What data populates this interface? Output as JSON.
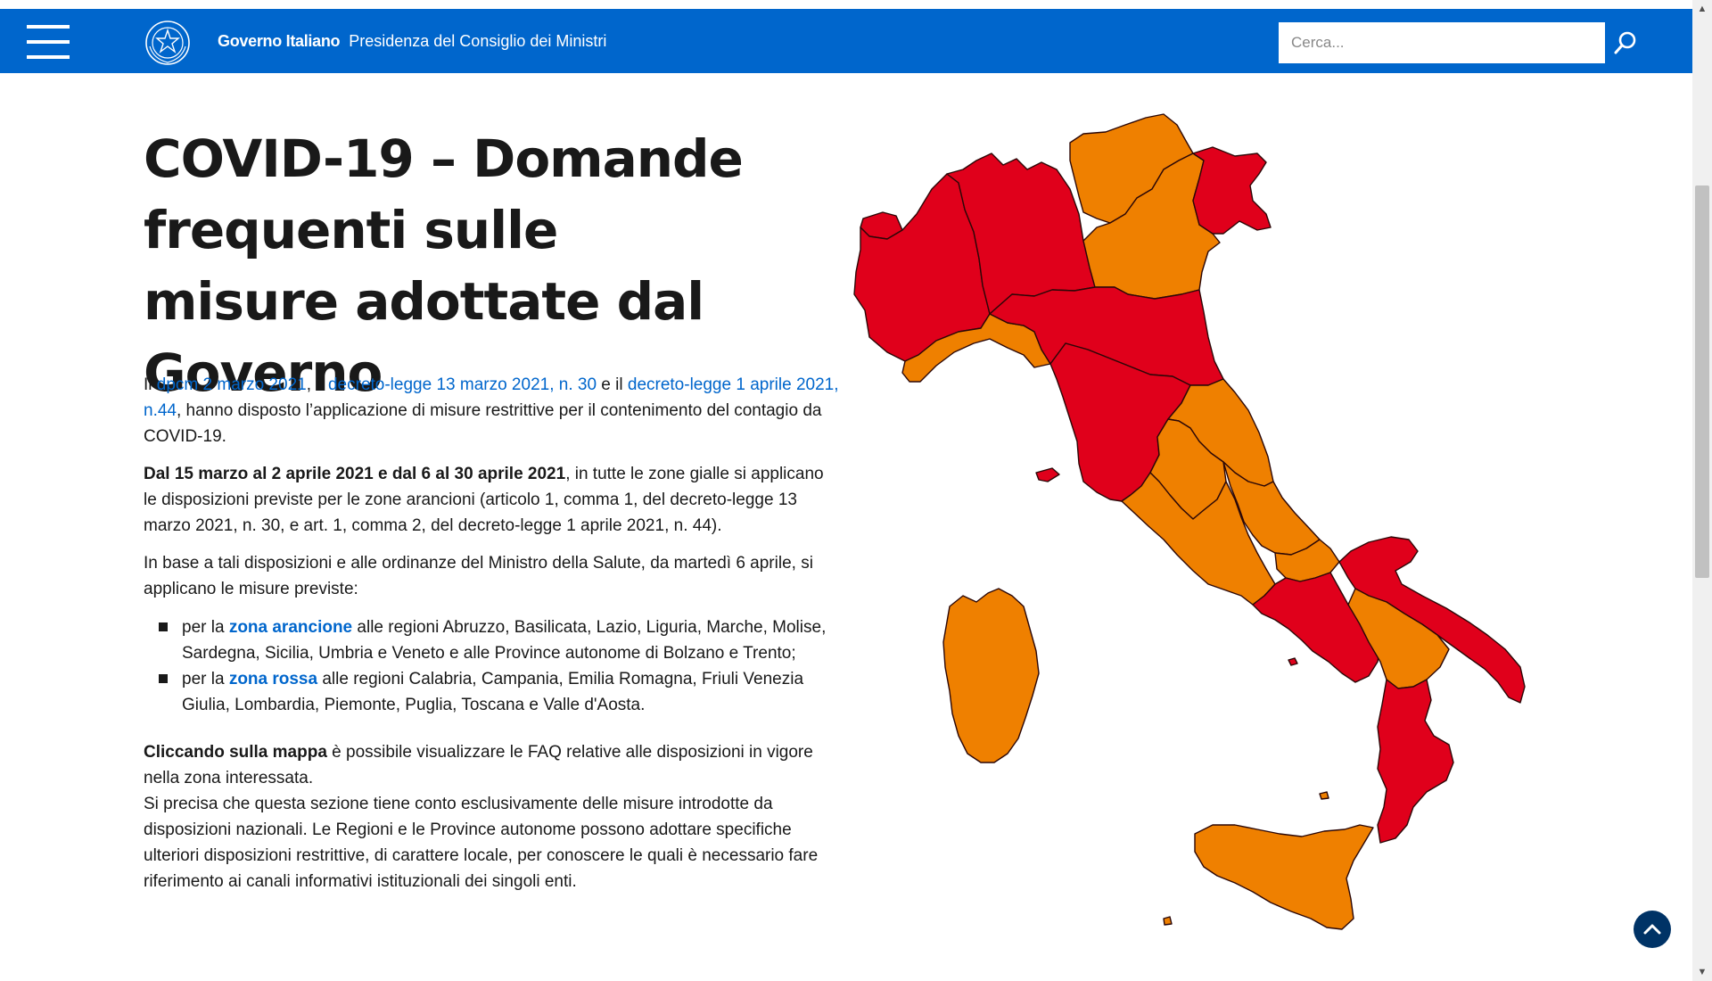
{
  "header": {
    "brand_primary": "Governo Italiano",
    "brand_secondary": "Presidenza del Consiglio dei Ministri",
    "search_placeholder": "Cerca..."
  },
  "page": {
    "title": "COVID-19 – Domande frequenti sulle misure adottate dal Governo",
    "intro": {
      "t1": "Il ",
      "link1": "dpcm 2 marzo 2021",
      "t2": ", il ",
      "link2": "decreto-legge 13 marzo 2021, n. 30",
      "t3": " e il ",
      "link3": "decreto-legge 1 aprile 2021, n.44",
      "t4": ", hanno disposto l’applicazione di misure restrittive per il contenimento del contagio da COVID-19."
    },
    "dates": {
      "bold": "Dal 15 marzo al 2 aprile 2021 e dal 6 al 30 aprile 2021",
      "rest": ", in tutte le zone gialle si applicano le disposizioni previste per le zone arancioni (articolo 1, comma 1, del decreto-legge 13 marzo 2021, n. 30, e art. 1, comma 2, del decreto-legge 1 aprile 2021, n. 44)."
    },
    "ordinances": "In base a tali disposizioni e alle ordinanze del Ministro della Salute, da martedì 6 aprile, si applicano le misure previste:",
    "zones": [
      {
        "prefix": "per la ",
        "link": "zona arancione",
        "rest": " alle regioni Abruzzo, Basilicata, Lazio, Liguria, Marche, Molise, Sardegna, Sicilia, Umbria e Veneto e alle Province autonome di Bolzano e Trento;"
      },
      {
        "prefix": "per la ",
        "link": "zona rossa",
        "rest": " alle regioni Calabria, Campania, Emilia Romagna, Friuli Venezia Giulia, Lombardia, Piemonte, Puglia, Toscana e Valle d'Aosta."
      }
    ],
    "map_note": {
      "bold": "Cliccando sulla mappa",
      "rest": " è possibile visualizzare le FAQ relative alle disposizioni in vigore nella zona interessata."
    },
    "disclaimer": "Si precisa che questa sezione tiene conto esclusivamente delle misure introdotte da disposizioni nazionali. Le Regioni e le Province autonome possono adottare specifiche ulteriori disposizioni restrittive, di carattere locale, per conoscere le quali è necessario fare riferimento ai canali informativi istituzionali dei singoli enti."
  },
  "map": {
    "colors": {
      "zona_rossa": "#e0001b",
      "zona_arancione": "#ef8000"
    },
    "regions": {
      "valle-d-aosta": "zona rossa",
      "piemonte": "zona rossa",
      "lombardia": "zona rossa",
      "trentino-alto-adige": "zona arancione",
      "veneto": "zona arancione",
      "friuli-venezia-giulia": "zona rossa",
      "liguria": "zona arancione",
      "emilia-romagna": "zona rossa",
      "toscana": "zona rossa",
      "marche": "zona arancione",
      "umbria": "zona arancione",
      "lazio": "zona arancione",
      "abruzzo": "zona arancione",
      "molise": "zona arancione",
      "campania": "zona rossa",
      "puglia": "zona rossa",
      "basilicata": "zona arancione",
      "calabria": "zona rossa",
      "sicilia": "zona arancione",
      "sardegna": "zona arancione"
    }
  }
}
